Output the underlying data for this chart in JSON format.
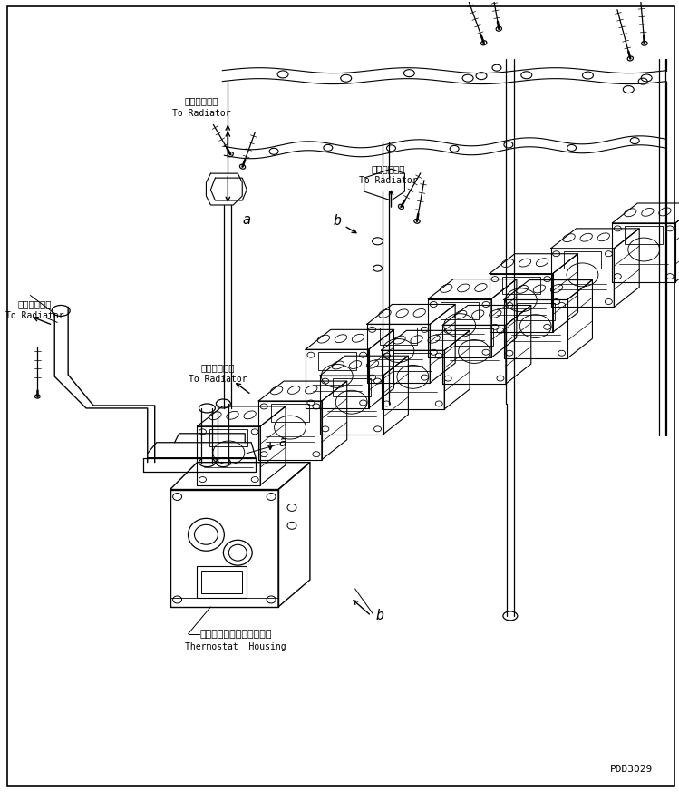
{
  "background_color": "#ffffff",
  "line_color": "#000000",
  "fig_width": 7.49,
  "fig_height": 8.73,
  "dpi": 100,
  "watermark": "PDD3029",
  "labels": {
    "radiator_top_jp": "ラジエータへ",
    "radiator_top_en": "To Radiator",
    "radiator_mid_jp": "ラジエータへ",
    "radiator_mid_en": "To Radiator",
    "radiator_left_jp": "ラジエータへ",
    "radiator_left_en": "To Radiator",
    "radiator_lower_jp": "ラジエータへ",
    "radiator_lower_en": "To Radiator",
    "thermostat_jp": "サーモスタットハウジング",
    "thermostat_en": "Thermostat  Housing",
    "label_a": "a",
    "label_b": "b"
  }
}
